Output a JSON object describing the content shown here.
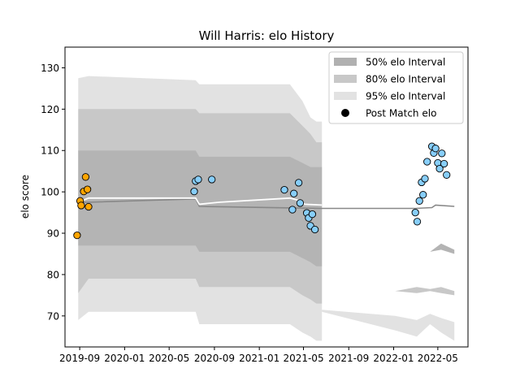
{
  "chart_data": {
    "type": "scatter",
    "title": "Will Harris: elo History",
    "xlabel": "",
    "ylabel": "elo score",
    "xlim": [
      "2019-07-23",
      "2022-07-22"
    ],
    "ylim": [
      62.5,
      135
    ],
    "grid": false,
    "legend_position": "top-right",
    "x_ticks": [
      "2019-09",
      "2020-01",
      "2020-05",
      "2020-09",
      "2021-01",
      "2021-05",
      "2021-09",
      "2022-01",
      "2022-05"
    ],
    "y_ticks": [
      70,
      80,
      90,
      100,
      110,
      120,
      130
    ],
    "legend": [
      {
        "label": "50% elo Interval",
        "kind": "patch",
        "color": "#b0b0b0"
      },
      {
        "label": "80% elo Interval",
        "kind": "patch",
        "color": "#c8c8c8"
      },
      {
        "label": "95% elo Interval",
        "kind": "patch",
        "color": "#e2e2e2"
      },
      {
        "label": "Post Match elo",
        "kind": "marker",
        "color": "#000000"
      }
    ],
    "colors": {
      "band_50": "#b4b4b4",
      "band_80": "#c8c8c8",
      "band_95": "#e2e2e2",
      "mean_line": "#ffffff",
      "future_line": "#888888",
      "early_points": "#ffa500",
      "later_points": "#87cefa",
      "point_edge": "#000000"
    },
    "intervals": {
      "x": [
        "2019-08-28",
        "2019-09-25",
        "2020-07-12",
        "2020-07-22",
        "2020-09-15",
        "2021-03-25",
        "2021-04-28",
        "2021-05-20",
        "2021-06-05",
        "2021-06-20"
      ],
      "p95_low": [
        69,
        71,
        71,
        68,
        68,
        68,
        66,
        65,
        64,
        64
      ],
      "p95_high": [
        127.5,
        128,
        127,
        126,
        126,
        126,
        122,
        118,
        117,
        117
      ],
      "p80_low": [
        75.5,
        79,
        79,
        77,
        77,
        77,
        75,
        74,
        73,
        73
      ],
      "p80_high": [
        120,
        120,
        120,
        119,
        119,
        119,
        116,
        114,
        112,
        112
      ],
      "p50_low": [
        87,
        87,
        87,
        85.5,
        85.5,
        85.5,
        84,
        83,
        82,
        82
      ],
      "p50_high": [
        110,
        110,
        110,
        108.5,
        108.5,
        108.5,
        107,
        106,
        106,
        106
      ]
    },
    "future_intervals": {
      "x": [
        "2021-06-20",
        "2022-01-05",
        "2022-03-05",
        "2022-04-10",
        "2022-05-10",
        "2022-06-15"
      ],
      "p95_low": [
        71,
        66.5,
        65,
        68,
        66,
        64
      ],
      "p95_high": [
        71.5,
        70,
        69,
        70.5,
        69.5,
        68.5
      ],
      "p80_low": [
        73.5,
        76,
        75.5,
        76,
        75.5,
        75
      ],
      "p80_high": [
        73.5,
        76,
        77,
        76.5,
        77,
        76
      ],
      "p50_low": [
        85.5,
        85.8,
        86,
        85.5,
        86,
        85
      ],
      "p50_high": [
        85.5,
        85.8,
        86,
        85.5,
        87.5,
        86
      ]
    },
    "mean_line": {
      "x": [
        "2019-08-28",
        "2019-09-25",
        "2020-07-12",
        "2020-07-22",
        "2020-09-15",
        "2021-03-25",
        "2021-04-15",
        "2021-05-05",
        "2021-06-20"
      ],
      "y": [
        97.5,
        98.5,
        98.5,
        97,
        97.5,
        98.5,
        98,
        97,
        96.8
      ]
    },
    "future_line": {
      "x": [
        "2019-08-28",
        "2019-09-25",
        "2020-07-12",
        "2020-07-22",
        "2021-06-20",
        "2022-01-05",
        "2022-03-01",
        "2022-04-15",
        "2022-04-25",
        "2022-06-15"
      ],
      "y": [
        97.5,
        97.5,
        98.3,
        96.5,
        96,
        96,
        96,
        96.2,
        96.8,
        96.5
      ]
    },
    "series": [
      {
        "marker_color": "#ffa500",
        "points": [
          {
            "x": "2019-08-25",
            "y": 89.5
          },
          {
            "x": "2019-09-02",
            "y": 97.8
          },
          {
            "x": "2019-09-05",
            "y": 96.7
          },
          {
            "x": "2019-09-12",
            "y": 100.1
          },
          {
            "x": "2019-09-17",
            "y": 103.6
          },
          {
            "x": "2019-09-22",
            "y": 100.6
          },
          {
            "x": "2019-09-25",
            "y": 96.4
          }
        ]
      },
      {
        "marker_color": "#87cefa",
        "points": [
          {
            "x": "2020-07-08",
            "y": 100.1
          },
          {
            "x": "2020-07-12",
            "y": 102.6
          },
          {
            "x": "2020-07-19",
            "y": 103
          },
          {
            "x": "2020-08-25",
            "y": 103
          },
          {
            "x": "2021-03-10",
            "y": 100.5
          },
          {
            "x": "2021-04-01",
            "y": 95.7
          },
          {
            "x": "2021-04-05",
            "y": 99.6
          },
          {
            "x": "2021-04-18",
            "y": 102.2
          },
          {
            "x": "2021-04-22",
            "y": 97.3
          },
          {
            "x": "2021-05-10",
            "y": 94.9
          },
          {
            "x": "2021-05-15",
            "y": 93.7
          },
          {
            "x": "2021-05-20",
            "y": 91.8
          },
          {
            "x": "2021-05-25",
            "y": 94.6
          },
          {
            "x": "2021-06-01",
            "y": 90.9
          },
          {
            "x": "2022-03-01",
            "y": 95
          },
          {
            "x": "2022-03-06",
            "y": 92.8
          },
          {
            "x": "2022-03-12",
            "y": 97.8
          },
          {
            "x": "2022-03-18",
            "y": 102.3
          },
          {
            "x": "2022-03-22",
            "y": 99.3
          },
          {
            "x": "2022-03-27",
            "y": 103.2
          },
          {
            "x": "2022-04-02",
            "y": 107.3
          },
          {
            "x": "2022-04-15",
            "y": 111
          },
          {
            "x": "2022-04-20",
            "y": 109.4
          },
          {
            "x": "2022-04-25",
            "y": 110.5
          },
          {
            "x": "2022-05-01",
            "y": 107
          },
          {
            "x": "2022-05-06",
            "y": 105.6
          },
          {
            "x": "2022-05-12",
            "y": 109.3
          },
          {
            "x": "2022-05-18",
            "y": 106.8
          },
          {
            "x": "2022-05-25",
            "y": 104.1
          }
        ]
      }
    ]
  }
}
